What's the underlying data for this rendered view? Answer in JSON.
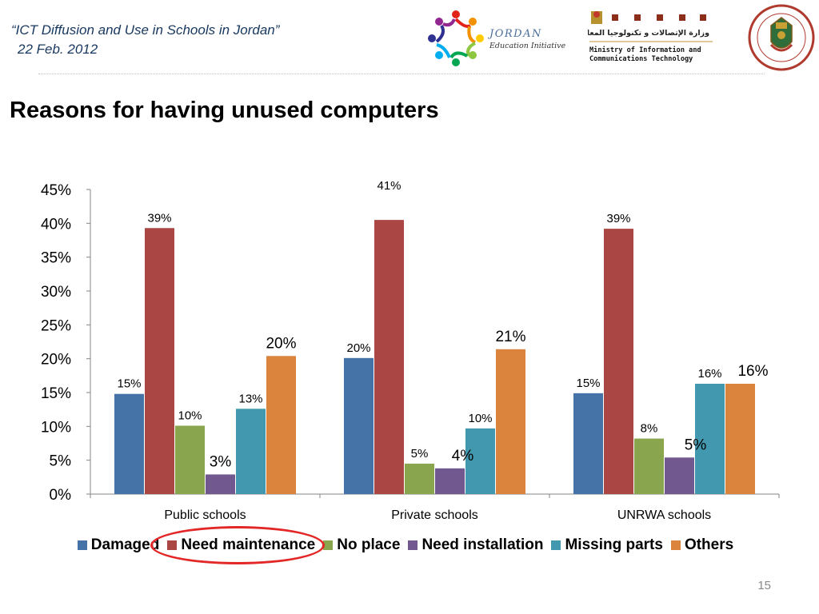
{
  "header": {
    "caption_line1": "“ICT  Diffusion and Use in Schools in Jordan”",
    "caption_line2": "22 Feb. 2012"
  },
  "logos": {
    "jordan_initiative": {
      "line1": "JORDAN",
      "line2": "Education Initiative"
    },
    "ministry": {
      "arabic": "وزارة الإتصالات و تكنولوجيا المعلومات",
      "line1": "Ministry of Information and",
      "line2": "Communications Technology"
    }
  },
  "slide_title": "Reasons for having unused computers",
  "page_number": "15",
  "chart_data": {
    "type": "bar",
    "categories": [
      "Public schools",
      "Private schools",
      "UNRWA schools"
    ],
    "ylim": [
      0,
      45
    ],
    "yticks": [
      0,
      5,
      10,
      15,
      20,
      25,
      30,
      35,
      40,
      45
    ],
    "ytick_labels": [
      "0%",
      "5%",
      "10%",
      "15%",
      "20%",
      "25%",
      "30%",
      "35%",
      "40%",
      "45%"
    ],
    "grid": false,
    "legend_position": "bottom",
    "series": [
      {
        "name": "Damaged",
        "color": "#4572a7",
        "values": [
          14.8,
          20.1,
          14.9
        ],
        "labels": [
          "15%",
          "20%",
          "15%"
        ]
      },
      {
        "name": "Need maintenance",
        "color": "#aa4643",
        "values": [
          39.3,
          40.5,
          39.2
        ],
        "labels": [
          "39%",
          "41%",
          "39%"
        ]
      },
      {
        "name": "No place",
        "color": "#89a54e",
        "values": [
          10.1,
          4.5,
          8.2
        ],
        "labels": [
          "10%",
          "5%",
          "8%"
        ]
      },
      {
        "name": "Need installation",
        "color": "#71588f",
        "values": [
          2.9,
          3.8,
          5.4
        ],
        "labels": [
          "3%",
          "4%",
          "5%"
        ]
      },
      {
        "name": "Missing parts",
        "color": "#4198af",
        "values": [
          12.6,
          9.7,
          16.3
        ],
        "labels": [
          "13%",
          "10%",
          "16%"
        ]
      },
      {
        "name": "Others",
        "color": "#db843d",
        "values": [
          20.4,
          21.4,
          16.3
        ],
        "labels": [
          "20%",
          "21%",
          "16%"
        ]
      }
    ],
    "highlighted_legend_entry": "Need maintenance",
    "highlight_color": "#e32626"
  }
}
